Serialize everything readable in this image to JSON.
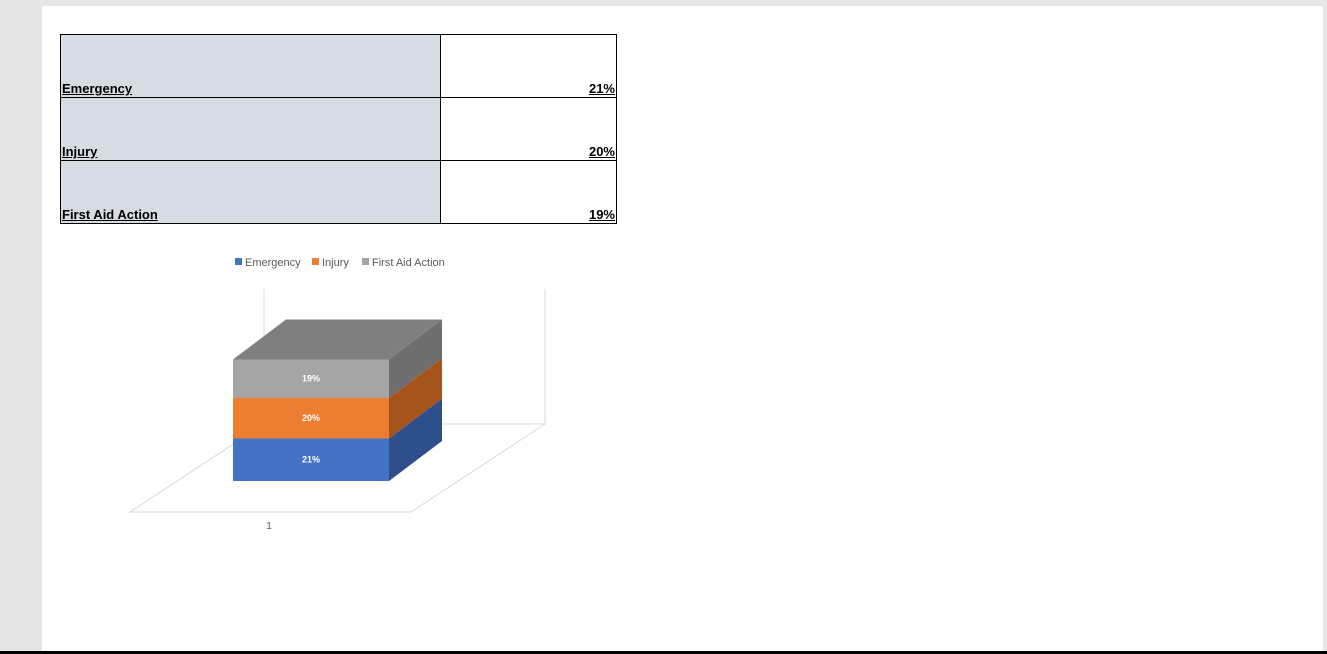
{
  "table": {
    "rows": [
      {
        "label": "Emergency",
        "value": "21%"
      },
      {
        "label": "Injury",
        "value": "20%"
      },
      {
        "label": "First Aid Action",
        "value": "19%"
      }
    ]
  },
  "chart_data": {
    "type": "bar",
    "stacked": true,
    "three_d": true,
    "categories": [
      "1"
    ],
    "series": [
      {
        "name": "Emergency",
        "values": [
          0.21
        ],
        "label": "21%",
        "color": "#4472c4",
        "side_color": "#2e4f8c",
        "top_color": "#5a86d6"
      },
      {
        "name": "Injury",
        "values": [
          0.2
        ],
        "label": "20%",
        "color": "#ed7d31",
        "side_color": "#a5541c",
        "top_color": "#f19a5c"
      },
      {
        "name": "First Aid Action",
        "values": [
          0.19
        ],
        "label": "19%",
        "color": "#a5a5a5",
        "side_color": "#6e6e6e",
        "top_color": "#7f7f7f"
      }
    ],
    "legend_position": "top",
    "grid": false,
    "data_labels": true
  }
}
